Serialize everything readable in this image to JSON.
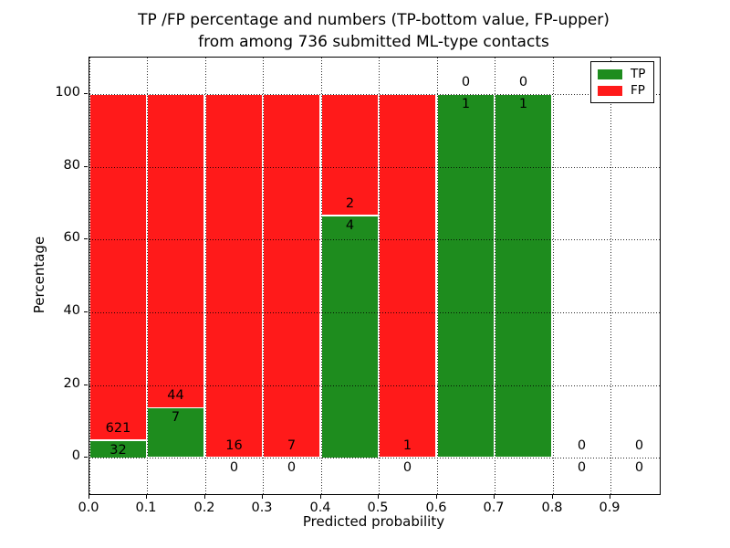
{
  "title": {
    "line1": "TP /FP percentage and numbers (TP-bottom value, FP-upper)",
    "line2": "from among 736 submitted ML-type contacts"
  },
  "axes": {
    "xlabel": "Predicted probability",
    "ylabel": "Percentage",
    "x_tick_labels": [
      "0.0",
      "0.1",
      "0.2",
      "0.3",
      "0.4",
      "0.5",
      "0.6",
      "0.7",
      "0.8",
      "0.9"
    ],
    "y_tick_labels": [
      "0",
      "20",
      "40",
      "60",
      "80",
      "100"
    ]
  },
  "legend": {
    "items": [
      {
        "label": "TP",
        "color": "#1e8c1e"
      },
      {
        "label": "FP",
        "color": "#ff1a1a"
      }
    ]
  },
  "colors": {
    "tp_green": "#1e8c1e",
    "fp_red": "#ff1a1a",
    "grid": "#000000",
    "background": "#ffffff"
  },
  "chart_data": {
    "type": "bar",
    "stacked": true,
    "normalized_to_percent": true,
    "title": "TP /FP percentage and numbers (TP-bottom value, FP-upper) from among 736 submitted ML-type contacts",
    "xlabel": "Predicted probability",
    "ylabel": "Percentage",
    "xlim": [
      0,
      0.985
    ],
    "ylim": [
      -10,
      110
    ],
    "grid": "dotted black, x and y",
    "legend_position": "upper right",
    "bin_width": 0.1,
    "bin_starts": [
      0.0,
      0.1,
      0.2,
      0.3,
      0.4,
      0.5,
      0.6,
      0.7,
      0.8,
      0.9
    ],
    "series": [
      {
        "name": "TP",
        "counts": [
          32,
          7,
          0,
          0,
          4,
          0,
          1,
          1,
          0,
          0
        ],
        "color": "#1e8c1e"
      },
      {
        "name": "FP",
        "counts": [
          621,
          44,
          16,
          7,
          2,
          1,
          0,
          0,
          0,
          0
        ],
        "color": "#ff1a1a"
      }
    ],
    "tp_percent_by_bin": [
      4.9,
      13.7,
      0.0,
      0.0,
      66.7,
      0.0,
      100.0,
      100.0,
      null,
      null
    ],
    "total_contacts": 736
  }
}
